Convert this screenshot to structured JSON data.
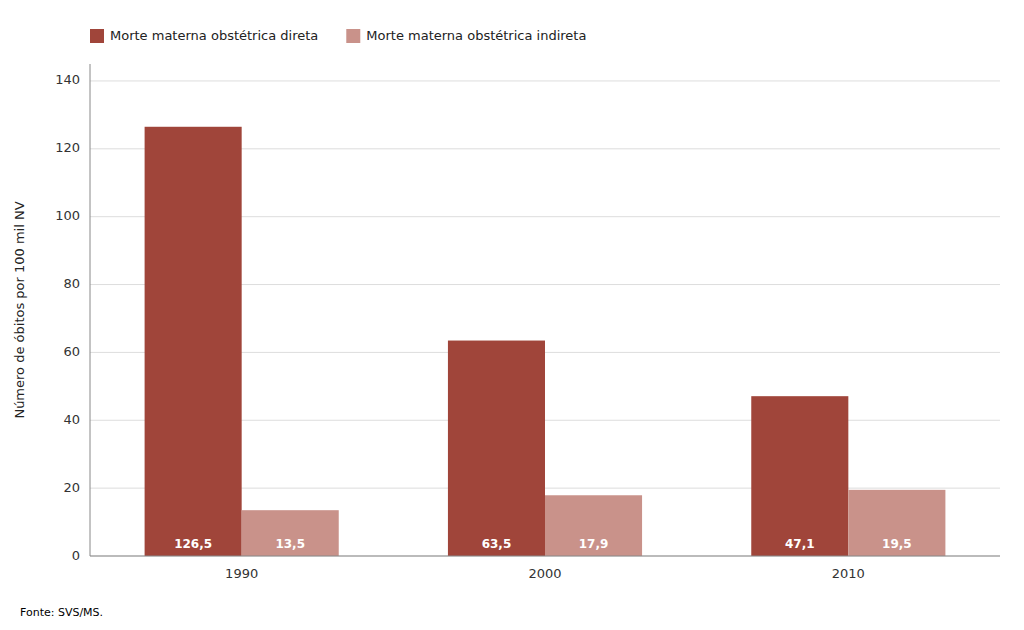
{
  "chart_data": {
    "type": "bar",
    "ylabel": "Número de óbitos por 100 mil NV",
    "footnote": "Fonte: SVS/MS.",
    "categories": [
      "1990",
      "2000",
      "2010"
    ],
    "series": [
      {
        "name": "Morte materna obstétrica direta",
        "color": "#A0453A",
        "values": [
          126.5,
          63.5,
          47.1
        ],
        "value_labels": [
          "126,5",
          "63,5",
          "47,1"
        ]
      },
      {
        "name": "Morte materna obstétrica indireta",
        "color": "#C9928A",
        "values": [
          13.5,
          17.9,
          19.5
        ],
        "value_labels": [
          "13,5",
          "17,9",
          "19,5"
        ]
      }
    ],
    "ylim": [
      0,
      145
    ],
    "yticks": [
      0,
      20,
      40,
      60,
      80,
      100,
      120,
      140
    ],
    "grid": true,
    "legend": "top-left",
    "data_labels": true
  }
}
